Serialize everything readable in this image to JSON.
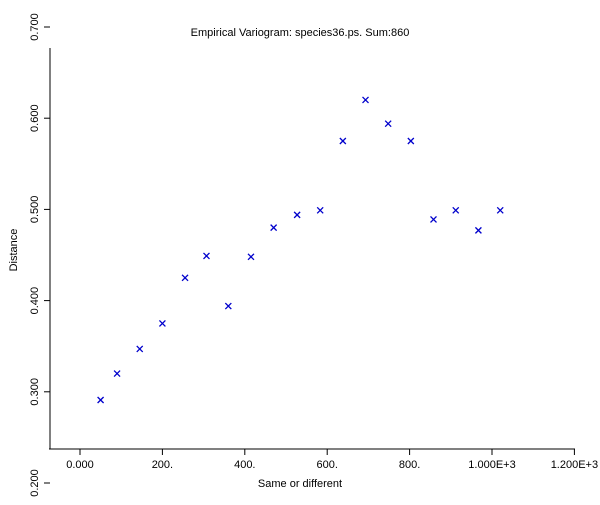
{
  "chart_data": {
    "type": "scatter",
    "title": "Empirical Variogram: species36.ps. Sum:860",
    "xlabel": "Same or different",
    "ylabel": "Distance",
    "xlim": [
      -50,
      1200
    ],
    "ylim": [
      0.2,
      0.7
    ],
    "x_ticks": [
      {
        "value": 0,
        "label": "0.000"
      },
      {
        "value": 200,
        "label": "200."
      },
      {
        "value": 400,
        "label": "400."
      },
      {
        "value": 600,
        "label": "600."
      },
      {
        "value": 800,
        "label": "800."
      },
      {
        "value": 1000,
        "label": "1.000E+3"
      },
      {
        "value": 1200,
        "label": "1.200E+3"
      }
    ],
    "y_ticks": [
      {
        "value": 0.2,
        "label": "0.200"
      },
      {
        "value": 0.3,
        "label": "0.300"
      },
      {
        "value": 0.4,
        "label": "0.400"
      },
      {
        "value": 0.5,
        "label": "0.500"
      },
      {
        "value": 0.6,
        "label": "0.600"
      },
      {
        "value": 0.7,
        "label": "0.700"
      }
    ],
    "marker": "x",
    "marker_color": "#0000cc",
    "grid": false,
    "series": [
      {
        "points": [
          {
            "x": 50,
            "y": 0.291
          },
          {
            "x": 90,
            "y": 0.32
          },
          {
            "x": 145,
            "y": 0.347
          },
          {
            "x": 200,
            "y": 0.375
          },
          {
            "x": 255,
            "y": 0.425
          },
          {
            "x": 307,
            "y": 0.449
          },
          {
            "x": 360,
            "y": 0.394
          },
          {
            "x": 415,
            "y": 0.448
          },
          {
            "x": 470,
            "y": 0.48
          },
          {
            "x": 527,
            "y": 0.494
          },
          {
            "x": 583,
            "y": 0.499
          },
          {
            "x": 638,
            "y": 0.575
          },
          {
            "x": 693,
            "y": 0.62
          },
          {
            "x": 748,
            "y": 0.594
          },
          {
            "x": 803,
            "y": 0.575
          },
          {
            "x": 858,
            "y": 0.489
          },
          {
            "x": 912,
            "y": 0.499
          },
          {
            "x": 967,
            "y": 0.477
          },
          {
            "x": 1020,
            "y": 0.499
          }
        ]
      }
    ]
  }
}
